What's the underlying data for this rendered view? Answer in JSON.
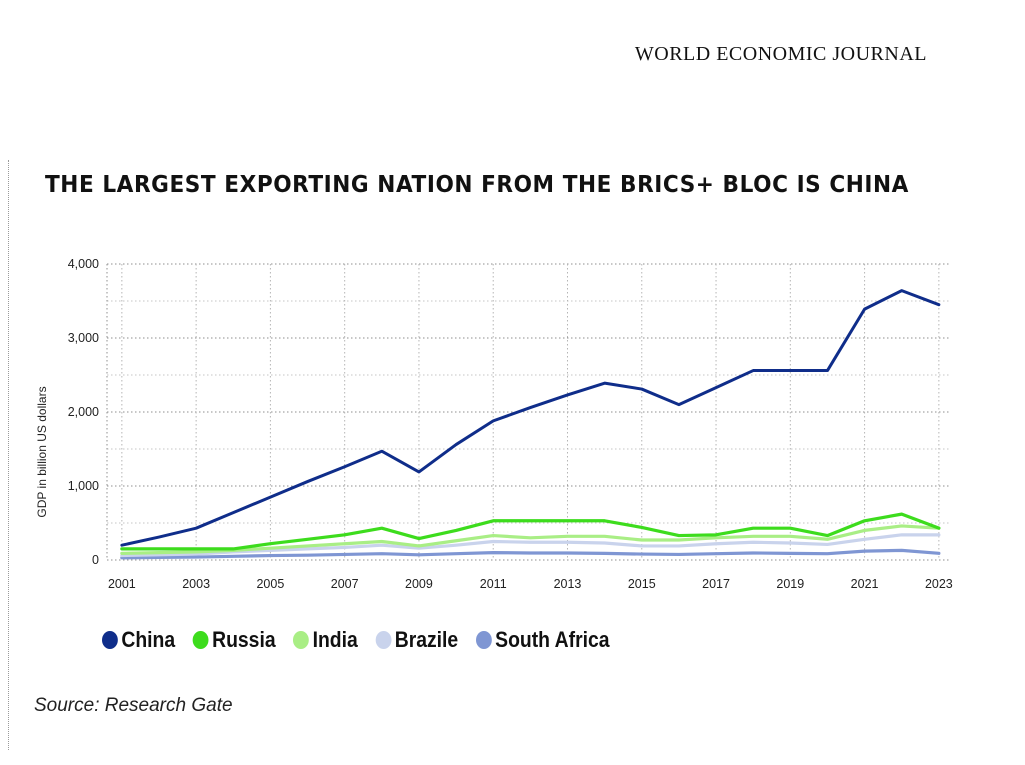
{
  "header": {
    "journal_name": "WORLD ECONOMIC JOURNAL"
  },
  "chart_data": {
    "type": "line",
    "title": "THE LARGEST EXPORTING NATION FROM THE BRICS+ BLOC IS CHINA",
    "xlabel": "",
    "ylabel": "GDP in billion US dollars",
    "x": [
      2001,
      2002,
      2003,
      2004,
      2005,
      2006,
      2007,
      2008,
      2009,
      2010,
      2011,
      2012,
      2013,
      2014,
      2015,
      2016,
      2017,
      2018,
      2019,
      2020,
      2021,
      2022,
      2023
    ],
    "x_ticks": [
      "2001",
      "2003",
      "2005",
      "2007",
      "2009",
      "2011",
      "2013",
      "2015",
      "2017",
      "2019",
      "2021",
      "2023"
    ],
    "y_ticks": [
      "0",
      "1,000",
      "2,000",
      "3,000",
      "4,000"
    ],
    "ylim": [
      0,
      4000
    ],
    "xlim": [
      2000.6,
      2023.3
    ],
    "grid": true,
    "legend_position": "bottom",
    "series": [
      {
        "name": "China",
        "color": "#0f2d8a",
        "values": [
          200,
          310,
          430,
          640,
          850,
          1060,
          1260,
          1470,
          1190,
          1560,
          1880,
          2060,
          2230,
          2390,
          2310,
          2100,
          2330,
          2560,
          2560,
          2560,
          3390,
          3640,
          3450
        ]
      },
      {
        "name": "Russia",
        "color": "#3ddc1d",
        "values": [
          150,
          150,
          150,
          150,
          220,
          280,
          340,
          430,
          290,
          400,
          530,
          530,
          530,
          530,
          440,
          330,
          340,
          430,
          430,
          330,
          530,
          620,
          430
        ]
      },
      {
        "name": "India",
        "color": "#a9ee85",
        "values": [
          90,
          100,
          110,
          130,
          160,
          190,
          220,
          250,
          190,
          260,
          330,
          300,
          320,
          320,
          270,
          270,
          300,
          320,
          320,
          280,
          400,
          460,
          430
        ]
      },
      {
        "name": "Brazile",
        "color": "#c9d3ec",
        "values": [
          60,
          70,
          80,
          110,
          130,
          150,
          170,
          200,
          160,
          200,
          250,
          240,
          240,
          230,
          190,
          190,
          220,
          240,
          230,
          210,
          280,
          340,
          340
        ]
      },
      {
        "name": "South Africa",
        "color": "#7f96d3",
        "values": [
          30,
          35,
          40,
          50,
          60,
          65,
          75,
          85,
          70,
          85,
          100,
          95,
          95,
          90,
          80,
          75,
          85,
          95,
          90,
          85,
          120,
          130,
          90
        ]
      }
    ]
  },
  "source_text": "Source: Research Gate"
}
